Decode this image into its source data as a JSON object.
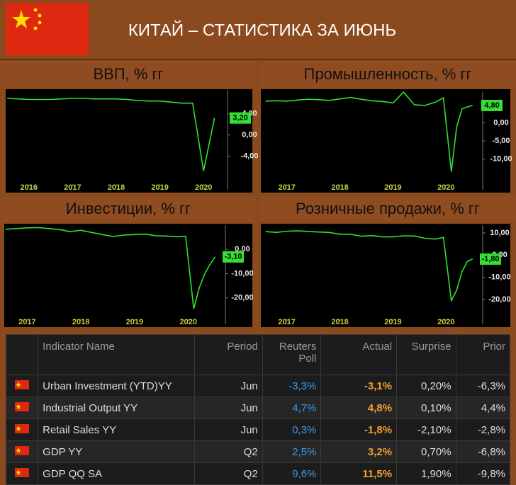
{
  "header": {
    "title": "КИТАЙ – СТАТИСТИКА ЗА ИЮНЬ"
  },
  "chart_data": [
    {
      "type": "line",
      "title": "ВВП, % гг",
      "color": "#33e033",
      "x": [
        2015.5,
        2015.75,
        2016,
        2016.25,
        2016.5,
        2016.75,
        2017,
        2017.25,
        2017.5,
        2017.75,
        2018,
        2018.25,
        2018.5,
        2018.75,
        2019,
        2019.25,
        2019.5,
        2019.75,
        2020,
        2020.25
      ],
      "values": [
        6.9,
        6.8,
        6.7,
        6.7,
        6.7,
        6.8,
        6.9,
        6.9,
        6.8,
        6.8,
        6.8,
        6.7,
        6.5,
        6.4,
        6.4,
        6.2,
        6.0,
        6.0,
        -6.8,
        3.2
      ],
      "value_labels": [
        null,
        null,
        null,
        null,
        null,
        null,
        null,
        null,
        null,
        null,
        null,
        null,
        null,
        null,
        null,
        null,
        null,
        null,
        null,
        "3,20"
      ],
      "xlim": [
        2015.5,
        2020.5
      ],
      "xticks": [
        2016,
        2017,
        2018,
        2019,
        2020
      ],
      "ylim": [
        -9,
        8.5
      ],
      "yticks": [
        {
          "value": 4,
          "label": "4,00"
        },
        {
          "value": 0,
          "label": "0,00"
        },
        {
          "value": -4,
          "label": "-4,00"
        }
      ]
    },
    {
      "type": "line",
      "title": "Промышленность, % гг",
      "color": "#33e033",
      "x": [
        2016.6,
        2016.8,
        2017,
        2017.2,
        2017.4,
        2017.6,
        2017.8,
        2018,
        2018.2,
        2018.4,
        2018.6,
        2018.8,
        2019,
        2019.2,
        2019.4,
        2019.6,
        2019.8,
        2019.95,
        2020.1,
        2020.2,
        2020.3,
        2020.4,
        2020.5
      ],
      "values": [
        6.0,
        6.1,
        6.0,
        6.3,
        6.5,
        6.4,
        6.2,
        6.6,
        7.0,
        6.5,
        6.1,
        5.9,
        5.5,
        8.5,
        5.0,
        4.8,
        5.7,
        6.9,
        -13.5,
        -1.1,
        3.9,
        4.4,
        4.8
      ],
      "value_labels": [
        null,
        null,
        null,
        null,
        null,
        null,
        null,
        null,
        null,
        null,
        null,
        null,
        null,
        null,
        null,
        null,
        null,
        null,
        null,
        null,
        null,
        null,
        "4,80"
      ],
      "xlim": [
        2016.55,
        2020.65
      ],
      "xticks": [
        2017,
        2018,
        2019,
        2020
      ],
      "ylim": [
        -16.5,
        8.5
      ],
      "yticks": [
        {
          "value": 0,
          "label": "0,00"
        },
        {
          "value": -5,
          "label": "-5,00"
        },
        {
          "value": -10,
          "label": "-10,00"
        }
      ]
    },
    {
      "type": "line",
      "title": "Инвестиции, % гг",
      "color": "#33e033",
      "x": [
        2016.6,
        2016.8,
        2017,
        2017.2,
        2017.4,
        2017.6,
        2017.8,
        2018,
        2018.2,
        2018.4,
        2018.6,
        2018.8,
        2019,
        2019.2,
        2019.4,
        2019.6,
        2019.8,
        2019.95,
        2020.1,
        2020.2,
        2020.3,
        2020.4,
        2020.5
      ],
      "values": [
        8.3,
        8.6,
        8.9,
        9.0,
        8.6,
        8.2,
        7.3,
        7.9,
        7.0,
        6.1,
        5.3,
        5.9,
        6.1,
        6.3,
        5.6,
        5.5,
        5.2,
        5.4,
        -24.5,
        -16.1,
        -10.3,
        -6.3,
        -3.1
      ],
      "value_labels": [
        null,
        null,
        null,
        null,
        null,
        null,
        null,
        null,
        null,
        null,
        null,
        null,
        null,
        null,
        null,
        null,
        null,
        null,
        null,
        null,
        null,
        null,
        "-3,10"
      ],
      "xlim": [
        2016.6,
        2020.65
      ],
      "xticks": [
        2017,
        2018,
        2019,
        2020
      ],
      "ylim": [
        -28,
        10
      ],
      "yticks": [
        {
          "value": 0,
          "label": "0,00"
        },
        {
          "value": -10,
          "label": "-10,00"
        },
        {
          "value": -20,
          "label": "-20,00"
        }
      ]
    },
    {
      "type": "line",
      "title": "Розничные продажи, % гг",
      "color": "#33e033",
      "x": [
        2016.6,
        2016.8,
        2017,
        2017.2,
        2017.4,
        2017.6,
        2017.8,
        2018,
        2018.2,
        2018.4,
        2018.6,
        2018.8,
        2019,
        2019.2,
        2019.4,
        2019.6,
        2019.8,
        2019.95,
        2020.1,
        2020.2,
        2020.3,
        2020.4,
        2020.5
      ],
      "values": [
        10.6,
        10.2,
        10.8,
        10.9,
        10.7,
        10.4,
        10.2,
        9.4,
        9.4,
        8.5,
        8.8,
        8.2,
        8.2,
        8.7,
        8.6,
        7.6,
        7.2,
        8.0,
        -20.5,
        -15.8,
        -7.5,
        -2.8,
        -1.8
      ],
      "value_labels": [
        null,
        null,
        null,
        null,
        null,
        null,
        null,
        null,
        null,
        null,
        null,
        null,
        null,
        null,
        null,
        null,
        null,
        null,
        null,
        null,
        null,
        null,
        "-1,80"
      ],
      "xlim": [
        2016.55,
        2020.65
      ],
      "xticks": [
        2017,
        2018,
        2019,
        2020
      ],
      "ylim": [
        -28,
        13.5
      ],
      "yticks": [
        {
          "value": 10,
          "label": "10,00"
        },
        {
          "value": 0,
          "label": "0,00"
        },
        {
          "value": -10,
          "label": "-10,00"
        },
        {
          "value": -20,
          "label": "-20,00"
        }
      ]
    }
  ],
  "table": {
    "header": [
      "Indicator Name",
      "Period",
      "Reuters Poll",
      "Actual",
      "Surprise",
      "Prior"
    ],
    "rows": [
      [
        "Urban Investment (YTD)YY",
        "Jun",
        "-3,3%",
        "-3,1%",
        "0,20%",
        "-6,3%"
      ],
      [
        "Industrial Output YY",
        "Jun",
        "4,7%",
        "4,8%",
        "0,10%",
        "4,4%"
      ],
      [
        "Retail Sales YY",
        "Jun",
        "0,3%",
        "-1,8%",
        "-2,10%",
        "-2,8%"
      ],
      [
        "GDP YY",
        "Q2",
        "2,5%",
        "3,2%",
        "0,70%",
        "-6,8%"
      ],
      [
        "GDP QQ SA",
        "Q2",
        "9,6%",
        "11,5%",
        "1,90%",
        "-9,8%"
      ]
    ]
  }
}
